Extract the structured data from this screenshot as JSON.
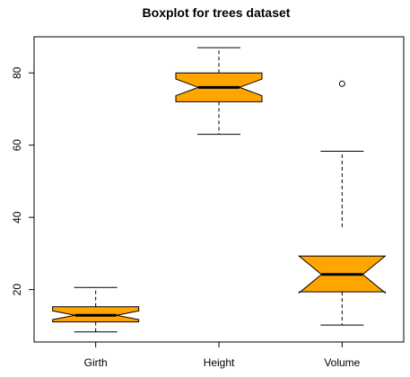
{
  "chart_data": {
    "type": "boxplot",
    "title": "Boxplot for trees dataset",
    "xlabel": "",
    "ylabel": "",
    "categories": [
      "Girth",
      "Height",
      "Volume"
    ],
    "notched": true,
    "box_color": "#FFA500",
    "ylim": [
      5.5,
      90
    ],
    "yticks": [
      20,
      40,
      60,
      80
    ],
    "boxes": [
      {
        "name": "Girth",
        "min": 8.3,
        "q1": 11.05,
        "median": 12.9,
        "q3": 15.25,
        "max": 20.6,
        "notch_low": 11.7,
        "notch_high": 14.1,
        "outliers": []
      },
      {
        "name": "Height",
        "min": 63,
        "q1": 72,
        "median": 76,
        "q3": 80,
        "max": 87,
        "notch_low": 73.7,
        "notch_high": 78.3,
        "outliers": []
      },
      {
        "name": "Volume",
        "min": 10.2,
        "q1": 19.4,
        "median": 24.2,
        "q3": 37.3,
        "max": 58.3,
        "notch_low": 19.1,
        "notch_high": 29.3,
        "outliers": [
          77.0
        ]
      }
    ]
  }
}
